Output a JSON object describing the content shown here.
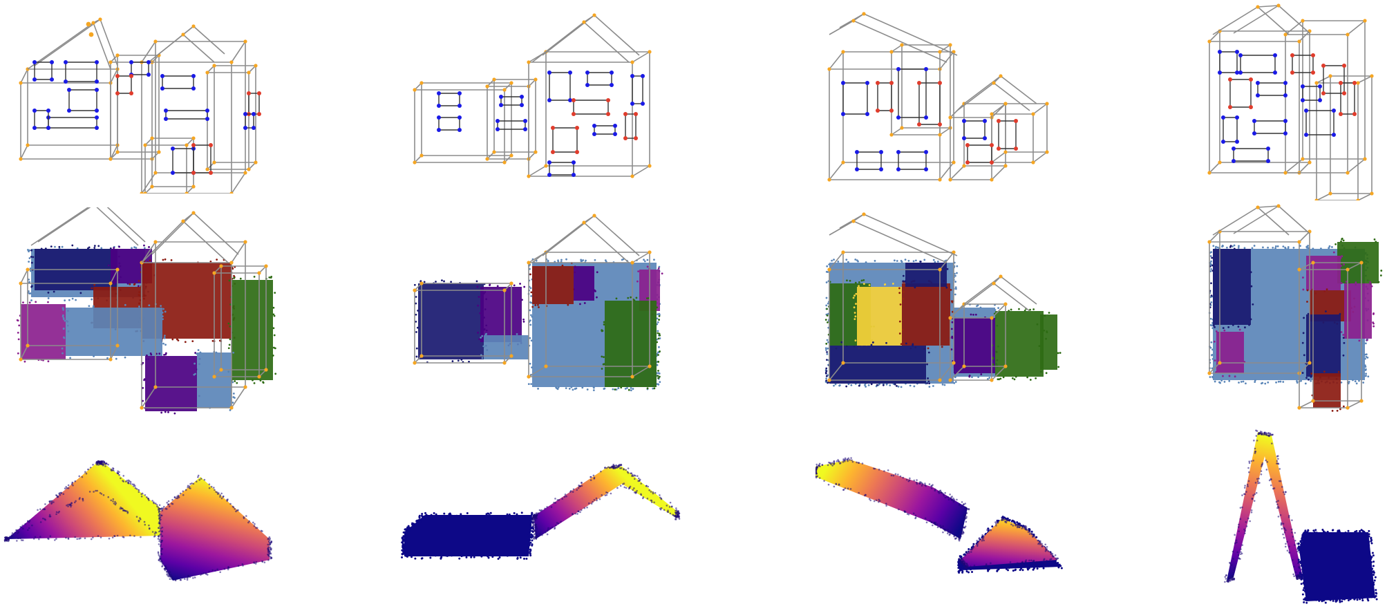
{
  "colors": {
    "wire": "#8c8c8c",
    "wire_vertex": "#f5a623",
    "window": "#1a1ae6",
    "door": "#e03c2c",
    "segments": [
      "#191970",
      "#4b0082",
      "#8b1a10",
      "#2e6b14",
      "#5b86b8",
      "#8b1f8e",
      "#f6d13a"
    ],
    "height_map": [
      "#0d0887",
      "#5c01a6",
      "#9c179e",
      "#cc4778",
      "#ed7953",
      "#fdb42f",
      "#f0f921"
    ]
  },
  "figure": {
    "rows": [
      "wireframe",
      "segmentation",
      "height"
    ],
    "columns": 4
  }
}
